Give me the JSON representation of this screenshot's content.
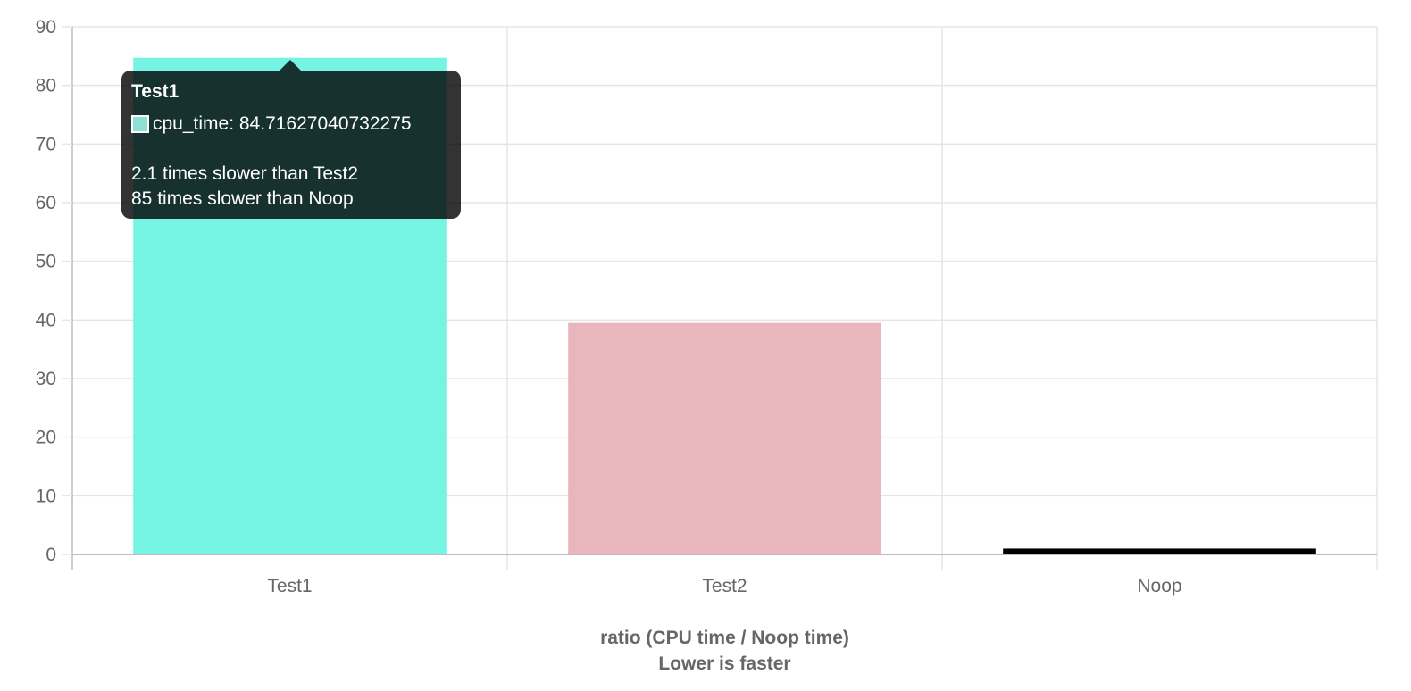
{
  "chart_data": {
    "type": "bar",
    "categories": [
      "Test1",
      "Test2",
      "Noop"
    ],
    "series": [
      {
        "name": "cpu_time",
        "values": [
          84.71627040732275,
          39.5,
          1
        ]
      }
    ],
    "bar_colors": [
      "#75f3e3",
      "#e9b6bd",
      "#000000"
    ],
    "title": "",
    "xlabel": [
      "ratio (CPU time / Noop time)",
      "Lower is faster"
    ],
    "ylabel": "",
    "ylim": [
      0,
      90
    ],
    "yticks": [
      0,
      10,
      20,
      30,
      40,
      50,
      60,
      70,
      80,
      90
    ],
    "grid": true,
    "legend": "none",
    "gridline_color": "#e5e5e5",
    "axis_color": "#bdbdbd",
    "tick_label_color": "#666666"
  },
  "tooltip": {
    "title": "Test1",
    "label": "cpu_time: 84.71627040732275",
    "swatch_color": "#8ee0d6",
    "footer": [
      "2.1 times slower than Test2",
      "85 times slower than Noop"
    ]
  }
}
